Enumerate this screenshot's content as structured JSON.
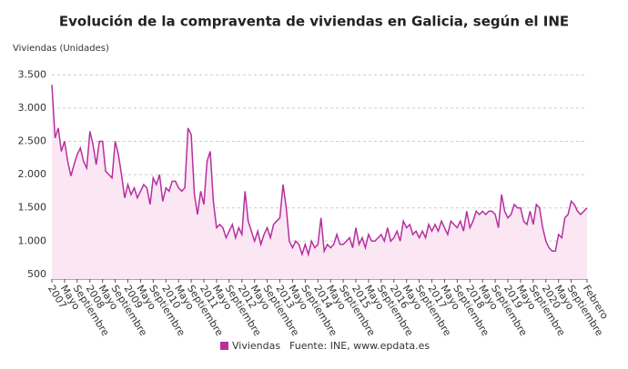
{
  "chart_data": {
    "type": "area-line",
    "title": "Evolución de la compraventa de viviendas en Galicia, según el INE",
    "y_label": "Viviendas (Unidades)",
    "source": "Fuente: INE, www.epdata.es",
    "categories": [
      "2007",
      null,
      null,
      null,
      "Mayo",
      null,
      null,
      null,
      "Septiembre",
      null,
      null,
      null,
      "2008",
      null,
      null,
      null,
      "Mayo",
      null,
      null,
      null,
      "Septiembre",
      null,
      null,
      null,
      "2009",
      null,
      null,
      null,
      "Mayo",
      null,
      null,
      null,
      "Septiembre",
      null,
      null,
      null,
      "2010",
      null,
      null,
      null,
      "Mayo",
      null,
      null,
      null,
      "Septiembre",
      null,
      null,
      null,
      "2011",
      null,
      null,
      null,
      "Mayo",
      null,
      null,
      null,
      "Septiembre",
      null,
      null,
      null,
      "2012",
      null,
      null,
      null,
      "Mayo",
      null,
      null,
      null,
      "Septiembre",
      null,
      null,
      null,
      "2013",
      null,
      null,
      null,
      "Mayo",
      null,
      null,
      null,
      "Septiembre",
      null,
      null,
      null,
      "2014",
      null,
      null,
      null,
      "Mayo",
      null,
      null,
      null,
      "Septiembre",
      null,
      null,
      null,
      "2015",
      null,
      null,
      null,
      "Mayo",
      null,
      null,
      null,
      "Septiembre",
      null,
      null,
      null,
      "2016",
      null,
      null,
      null,
      "Mayo",
      null,
      null,
      null,
      "Septiembre",
      null,
      null,
      null,
      "2017",
      null,
      null,
      null,
      "Mayo",
      null,
      null,
      null,
      "Septiembre",
      null,
      null,
      null,
      "2018",
      null,
      null,
      null,
      "Mayo",
      null,
      null,
      null,
      "Septiembre",
      null,
      null,
      null,
      "2019",
      null,
      null,
      null,
      "Mayo",
      null,
      null,
      null,
      "Septiembre",
      null,
      null,
      null,
      "2020",
      null,
      null,
      null,
      "Mayo",
      null,
      null,
      null,
      "Septiembre",
      null,
      null,
      null,
      null,
      "Febrero"
    ],
    "series": [
      {
        "name": "Viviendas",
        "color": "#b5309e",
        "fill": "#fbe6f4",
        "values": [
          3350,
          2550,
          2700,
          2350,
          2500,
          2200,
          1980,
          2150,
          2300,
          2400,
          2200,
          2100,
          2650,
          2450,
          2150,
          2500,
          2500,
          2050,
          2000,
          1950,
          2500,
          2300,
          2000,
          1650,
          1850,
          1700,
          1800,
          1650,
          1750,
          1850,
          1800,
          1550,
          1950,
          1850,
          2000,
          1600,
          1800,
          1750,
          1900,
          1900,
          1800,
          1750,
          1800,
          2700,
          2600,
          1700,
          1400,
          1750,
          1550,
          2200,
          2350,
          1600,
          1200,
          1250,
          1200,
          1050,
          1150,
          1250,
          1050,
          1200,
          1100,
          1750,
          1300,
          1150,
          1000,
          1150,
          950,
          1100,
          1200,
          1050,
          1250,
          1300,
          1350,
          1850,
          1500,
          1000,
          900,
          1000,
          950,
          800,
          950,
          800,
          1000,
          900,
          950,
          1350,
          850,
          950,
          900,
          950,
          1100,
          950,
          950,
          1000,
          1050,
          900,
          1200,
          950,
          1050,
          900,
          1100,
          1000,
          1000,
          1050,
          1100,
          1000,
          1200,
          1000,
          1050,
          1150,
          1000,
          1300,
          1200,
          1250,
          1100,
          1150,
          1050,
          1150,
          1050,
          1250,
          1150,
          1250,
          1150,
          1300,
          1200,
          1100,
          1300,
          1250,
          1200,
          1300,
          1150,
          1450,
          1200,
          1300,
          1450,
          1400,
          1450,
          1400,
          1450,
          1450,
          1400,
          1200,
          1700,
          1450,
          1350,
          1400,
          1550,
          1500,
          1500,
          1300,
          1250,
          1450,
          1250,
          1550,
          1500,
          1200,
          1000,
          900,
          850,
          850,
          1100,
          1050,
          1350,
          1400,
          1600,
          1550,
          1450,
          1400,
          1450,
          1500
        ]
      }
    ],
    "ylim": [
      430,
      3600
    ],
    "yticks": [
      500,
      {
        "value": 1000,
        "label": "1.000"
      },
      {
        "value": 1500,
        "label": "1.500"
      },
      {
        "value": 2000,
        "label": "2.000"
      },
      {
        "value": 2500,
        "label": "2.500"
      },
      {
        "value": 3000,
        "label": "3.000"
      },
      {
        "value": 3500,
        "label": "3.500"
      }
    ],
    "grid": true
  }
}
